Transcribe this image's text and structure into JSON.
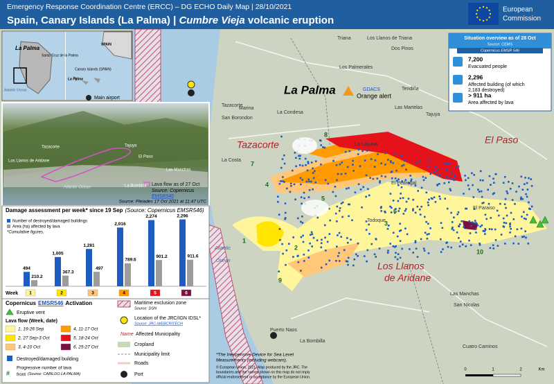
{
  "header": {
    "subtitle": "Emergency Response Coordination Centre (ERCC) – DG ECHO Daily Map | 28/10/2021",
    "title_prefix": "Spain, Canary Islands (La Palma) | ",
    "title_italic": "Cumbre Vieja",
    "title_suffix": " volcanic eruption",
    "logo_line1": "European",
    "logo_line2": "Commission"
  },
  "inset": {
    "island": "La Palma",
    "capital": "Santa Cruz de la Palma",
    "ocean": "Atlantic Ocean",
    "spain": "SPAIN",
    "canary": "Canary Islands (SPAIN)",
    "island_small": "La Palma",
    "airport": "Main airport"
  },
  "view3d": {
    "lava_note": "Lava flow as of 27 Oct",
    "lava_source": "Source: Copernicus",
    "lava_source_link": "EMSR546",
    "image_source": "Source: Pleiades 17 Oct 2021 at 11:47 UTC",
    "places": [
      "Los Llanos de Aridane",
      "Tazacorte",
      "El Paso",
      "La Bombilla",
      "Atlantic Ocean",
      "Tajuya",
      "Las Manchas"
    ]
  },
  "chart_data": {
    "type": "bar",
    "title": "Damage assessment per week* since 19 Sep",
    "source": "(Source: Copernicus EMSR546)",
    "note": "*Cumulative figures.",
    "x_label": "Week",
    "categories": [
      "1",
      "2",
      "3",
      "4",
      "5",
      "6"
    ],
    "week_colors": [
      "#fff59a",
      "#ffe500",
      "#ffc777",
      "#ff9a00",
      "#e5121b",
      "#7a1042"
    ],
    "series": [
      {
        "name": "Number of destroyed/damaged buildings",
        "color": "#1d5cc0",
        "values": [
          494,
          1005,
          1281,
          2016,
          2274,
          2296
        ],
        "value_labels": [
          "494",
          "1,005",
          "1,281",
          "2,016",
          "2,274",
          "2,296"
        ]
      },
      {
        "name": "Area (ha) affected by lava",
        "color": "#9c9c9c",
        "values": [
          210.2,
          367.3,
          497,
          789.6,
          901.2,
          911.6
        ]
      }
    ]
  },
  "situation": {
    "title": "Situation overview as of 28 Oct",
    "source": "Source: CEMS",
    "activation": "Copernicus EMSR 546",
    "items": [
      {
        "figure": "7,200",
        "label": "Evacuated people"
      },
      {
        "figure": "2,296",
        "label": "Affected building (of which",
        "label2": "2,183 destroyed)"
      },
      {
        "figure": "> 911 ha",
        "label": "Area affected by lava"
      }
    ]
  },
  "map": {
    "title": "La Palma",
    "gdacs": "GDACS",
    "alert": "Orange alert",
    "ocean": "Atlantic",
    "ocean2": "Ocean",
    "places": [
      "Triana",
      "Los Llanos de Triana",
      "Dos Pinos",
      "Tazacorte",
      "Los Palmerales",
      "Tendiña",
      "Las Martelas",
      "Tajuya",
      "La Condesa",
      "Marina",
      "San Borondon",
      "La Laguna",
      "El Pedregal",
      "El Paraiso",
      "Todoque",
      "La Costa",
      "Puerto Naos",
      "La Bombilla",
      "Las Manchas",
      "San Nicolas",
      "Cuatro Caminos"
    ],
    "municipalities": [
      "Tazacorte",
      "El Paso",
      "Los Llanos",
      "de Aridane"
    ],
    "front_numbers": [
      8,
      7,
      4,
      5,
      6,
      3,
      1,
      2,
      9,
      10
    ],
    "scale": [
      "0",
      "1",
      "2",
      "Km"
    ]
  },
  "legend": {
    "title": "Copernicus",
    "title_link": "EMSR546",
    "title_suffix": "Activation",
    "vent": "Eruptive vent",
    "lava_title": "Lava flow (Week, date)",
    "lava_weeks": [
      "1, 19-26 Sep",
      "2, 27 Sep-3 Oct",
      "3, 4-10 Oct",
      "4, 11-17 Oct",
      "5, 18-24 Oct",
      "6, 25-27 Oct"
    ],
    "building": "Destroyed/damaged building",
    "front": "Progressive number of lava",
    "front2": "front",
    "front_source": "(Source: CABILDO LA PALMA)",
    "maritime": "Maritime exclusion zone",
    "maritime_source": "Source: DSN",
    "idsl": "Location of the JRC/IGN IDSL*",
    "idsl_source": "Source: JRC-WEBCRITECH",
    "name_word": "Name",
    "municipality": "Affected Municipality",
    "cropland": "Cropland",
    "limit": "Municipality limit",
    "roads": "Roads",
    "port": "Port"
  },
  "footer": {
    "note1": "*The Inexpensive Device for Sea Level",
    "note2": "Measurements (including webcam).",
    "copy1": "© European Union, 2021. Map produced by the JRC. The",
    "copy2": "boundaries and the names shown on this map do not imply",
    "copy3": "official endorsement or acceptance by the European Union."
  }
}
